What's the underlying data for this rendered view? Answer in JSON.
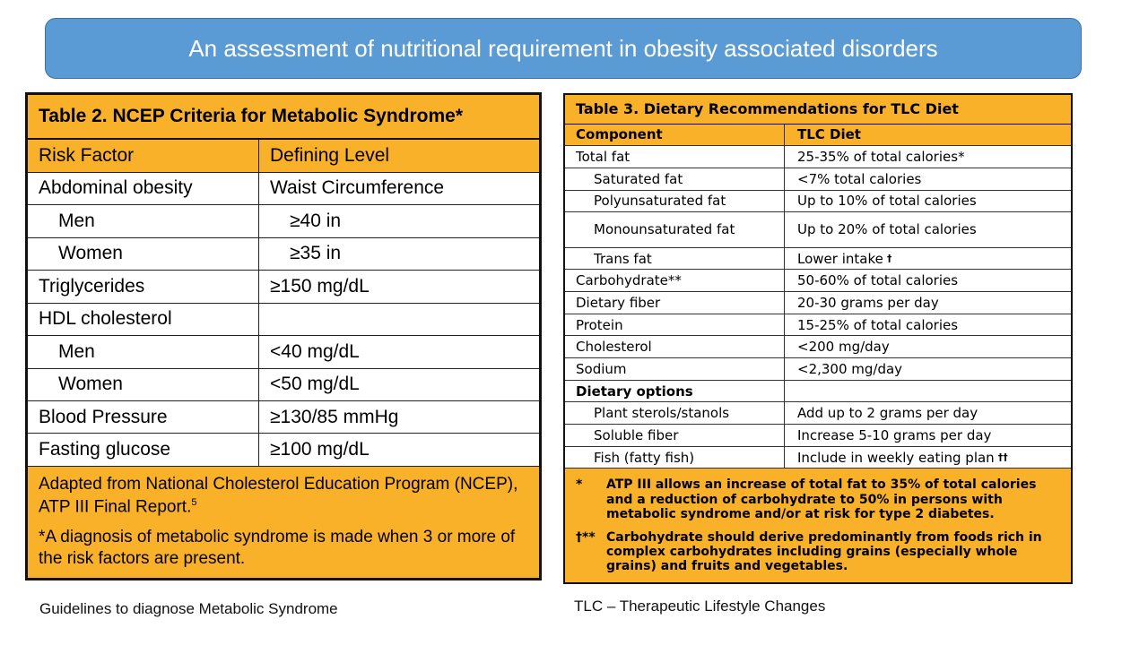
{
  "slide": {
    "title": "An assessment of nutritional requirement in obesity associated disorders",
    "caption_left": "Guidelines to diagnose Metabolic Syndrome",
    "caption_right": "TLC – Therapeutic Lifestyle Changes"
  },
  "table2": {
    "title": "Table 2.  NCEP Criteria for Metabolic Syndrome*",
    "headers": [
      "Risk Factor",
      "Defining Level"
    ],
    "rows": [
      {
        "factor": "Abdominal obesity",
        "level": "Waist Circumference"
      },
      {
        "factor": "Men",
        "level": "≥40 in"
      },
      {
        "factor": "Women",
        "level": "≥35 in"
      },
      {
        "factor": "Triglycerides",
        "level": "≥150 mg/dL"
      },
      {
        "factor": "HDL cholesterol",
        "level": ""
      },
      {
        "factor": "Men",
        "level": "<40 mg/dL"
      },
      {
        "factor": "Women",
        "level": "<50 mg/dL"
      },
      {
        "factor": "Blood Pressure",
        "level": "≥130/85 mmHg"
      },
      {
        "factor": "Fasting glucose",
        "level": "≥100 mg/dL"
      }
    ],
    "footnote_1": "Adapted from National Cholesterol Education Program (NCEP), ATP III Final Report.",
    "footnote_1_ref": "5",
    "footnote_2": "*A diagnosis of metabolic syndrome is made when 3 or more of the risk factors are present."
  },
  "table3": {
    "title": "Table 3.  Dietary Recommendations for TLC Diet",
    "headers": [
      "Component",
      "TLC Diet"
    ],
    "rows": [
      {
        "component": "Total fat",
        "diet": "25-35% of total calories*"
      },
      {
        "component": "Saturated fat",
        "diet": "<7% total calories"
      },
      {
        "component": "Polyunsaturated fat",
        "diet": "Up to 10% of total calories"
      },
      {
        "component": "Monounsaturated fat",
        "diet": "Up to 20% of total calories"
      },
      {
        "component": "Trans fat",
        "diet": "Lower intake"
      },
      {
        "component": "Carbohydrate**",
        "diet": "50-60% of total calories"
      },
      {
        "component": "Dietary fiber",
        "diet": "20-30 grams per day"
      },
      {
        "component": "Protein",
        "diet": "15-25% of total calories"
      },
      {
        "component": "Cholesterol",
        "diet": "<200 mg/day"
      },
      {
        "component": "Sodium",
        "diet": "<2,300 mg/day"
      },
      {
        "component": "Dietary options",
        "diet": ""
      },
      {
        "component": "Plant sterols/stanols",
        "diet": "Add up to 2 grams per day"
      },
      {
        "component": "Soluble fiber",
        "diet": "Increase 5-10 grams per day"
      },
      {
        "component": "Fish (fatty fish)",
        "diet": "Include in weekly eating plan"
      }
    ],
    "trans_mark": "†",
    "fish_mark": "††",
    "notes": [
      {
        "symbol": "*",
        "text": "ATP III allows an increase of total fat to 35% of total calories and a reduction of carbohydrate to 50% in persons with metabolic syndrome and/or at risk for type 2 diabetes."
      },
      {
        "symbol": "†**",
        "text": "Carbohydrate should derive predominantly from foods rich in complex carbohydrates including grains (especially whole grains) and fruits and vegetables."
      }
    ]
  },
  "colors": {
    "banner": "#5b9bd5",
    "table_header": "#f9b12a"
  }
}
